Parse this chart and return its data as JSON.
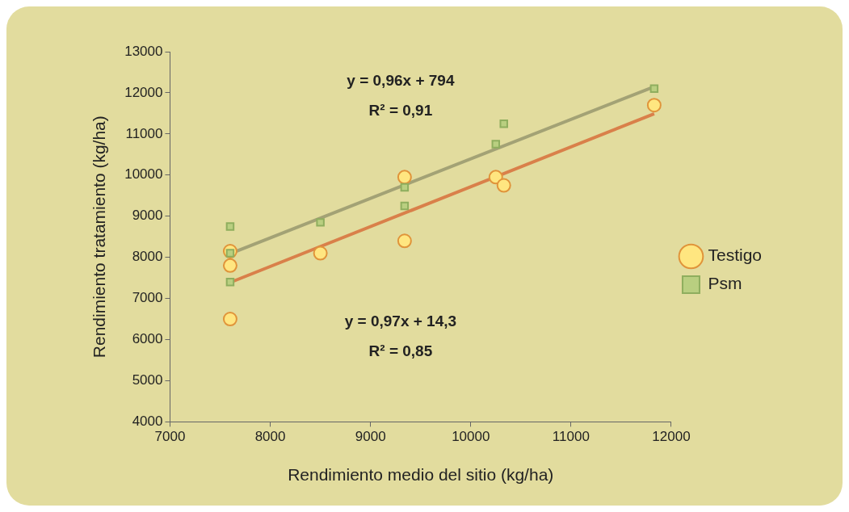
{
  "chart_data": {
    "type": "scatter",
    "xlabel": "Rendimiento medio del sitio (kg/ha)",
    "ylabel": "Rendimiento tratamiento (kg/ha)",
    "xlim": [
      7000,
      12000
    ],
    "xticks": [
      7000,
      8000,
      9000,
      10000,
      11000,
      12000
    ],
    "ylim": [
      4000,
      13000
    ],
    "yticks": [
      4000,
      5000,
      6000,
      7000,
      8000,
      9000,
      10000,
      11000,
      12000,
      13000
    ],
    "grid": false,
    "legend": "right",
    "series": [
      {
        "name": "Testigo",
        "type": "scatter",
        "marker": "circle",
        "color": "#ffe680",
        "x": [
          7600,
          7600,
          7600,
          8500,
          9340,
          9340,
          10250,
          10330,
          11830
        ],
        "values": [
          8150,
          7800,
          6500,
          8100,
          9950,
          8400,
          9950,
          9750,
          11700
        ]
      },
      {
        "name": "Psm",
        "type": "scatter",
        "marker": "square",
        "color": "#b9cf80",
        "x": [
          7600,
          7600,
          7600,
          8500,
          9340,
          9340,
          10250,
          10330,
          11830
        ],
        "values": [
          8750,
          8100,
          7400,
          8850,
          9700,
          9250,
          10750,
          11250,
          12100
        ]
      },
      {
        "type": "line",
        "marker": "none",
        "color": "#d9804a",
        "x": [
          7600,
          11830
        ],
        "values": [
          7390,
          11490
        ]
      },
      {
        "type": "line",
        "marker": "none",
        "color": "#a3a275",
        "x": [
          7600,
          11830
        ],
        "values": [
          8090,
          12150
        ]
      }
    ],
    "annotations": [
      "y = 0,96x + 794",
      "R² = 0,91",
      "y = 0,97x + 14,3",
      "R² = 0,85"
    ]
  }
}
